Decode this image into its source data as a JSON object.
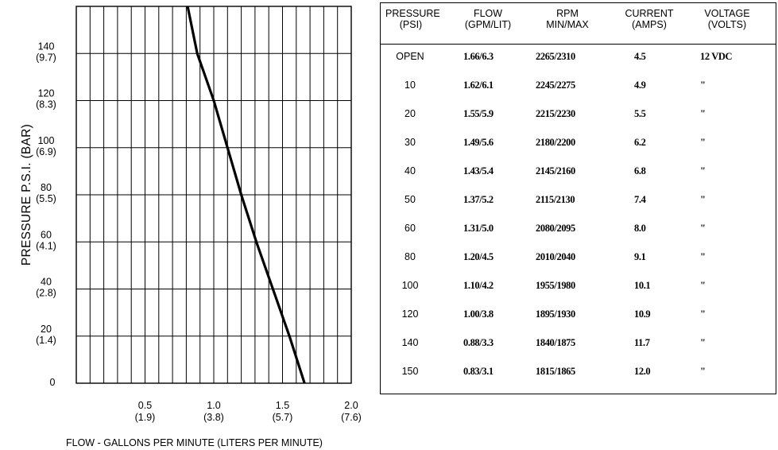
{
  "chart_data": [
    {
      "type": "line",
      "xlabel": "FLOW - GALLONS PER MINUTE  (LITERS PER MINUTE)",
      "ylabel": "PRESSURE  P.S.I.   (BAR)",
      "xlim": [
        0,
        2.0
      ],
      "ylim": [
        0,
        160
      ],
      "grid": true,
      "x_ticks": [
        {
          "value": 0.5,
          "label": "0.5",
          "sub": "(1.9)"
        },
        {
          "value": 1.0,
          "label": "1.0",
          "sub": "(3.8)"
        },
        {
          "value": 1.5,
          "label": "1.5",
          "sub": "(5.7)"
        },
        {
          "value": 2.0,
          "label": "2.0",
          "sub": "(7.6)"
        }
      ],
      "y_ticks": [
        {
          "value": 0,
          "label": "0",
          "sub": ""
        },
        {
          "value": 20,
          "label": "20",
          "sub": "(1.4)"
        },
        {
          "value": 40,
          "label": "40",
          "sub": "(2.8)"
        },
        {
          "value": 60,
          "label": "60",
          "sub": "(4.1)"
        },
        {
          "value": 80,
          "label": "80",
          "sub": "(5.5)"
        },
        {
          "value": 100,
          "label": "100",
          "sub": "(6.9)"
        },
        {
          "value": 120,
          "label": "120",
          "sub": "(8.3)"
        },
        {
          "value": 140,
          "label": "140",
          "sub": "(9.7)"
        }
      ],
      "series": [
        {
          "color": "#000000",
          "x": [
            1.66,
            1.55,
            1.43,
            1.31,
            1.2,
            1.1,
            1.0,
            0.88,
            0.81
          ],
          "y": [
            0,
            20,
            40,
            60,
            80,
            100,
            120,
            140,
            160
          ]
        }
      ]
    },
    {
      "type": "table",
      "headers": [
        {
          "line1": "PRESSURE",
          "line2": "(PSI)"
        },
        {
          "line1": "FLOW",
          "line2": "(GPM/LIT)"
        },
        {
          "line1": "RPM",
          "line2": "MIN/MAX"
        },
        {
          "line1": "CURRENT",
          "line2": "(AMPS)"
        },
        {
          "line1": "VOLTAGE",
          "line2": "(VOLTS)"
        }
      ],
      "rows": [
        [
          "OPEN",
          "1.66/6.3",
          "2265/2310",
          "4.5",
          "12  VDC"
        ],
        [
          "10",
          "1.62/6.1",
          "2245/2275",
          "4.9",
          "\""
        ],
        [
          "20",
          "1.55/5.9",
          "2215/2230",
          "5.5",
          "\""
        ],
        [
          "30",
          "1.49/5.6",
          "2180/2200",
          "6.2",
          "\""
        ],
        [
          "40",
          "1.43/5.4",
          "2145/2160",
          "6.8",
          "\""
        ],
        [
          "50",
          "1.37/5.2",
          "2115/2130",
          "7.4",
          "\""
        ],
        [
          "60",
          "1.31/5.0",
          "2080/2095",
          "8.0",
          "\""
        ],
        [
          "80",
          "1.20/4.5",
          "2010/2040",
          "9.1",
          "\""
        ],
        [
          "100",
          "1.10/4.2",
          "1955/1980",
          "10.1",
          "\""
        ],
        [
          "120",
          "1.00/3.8",
          "1895/1930",
          "10.9",
          "\""
        ],
        [
          "140",
          "0.88/3.3",
          "1840/1875",
          "11.7",
          "\""
        ],
        [
          "150",
          "0.83/3.1",
          "1815/1865",
          "12.0",
          "\""
        ]
      ]
    }
  ]
}
